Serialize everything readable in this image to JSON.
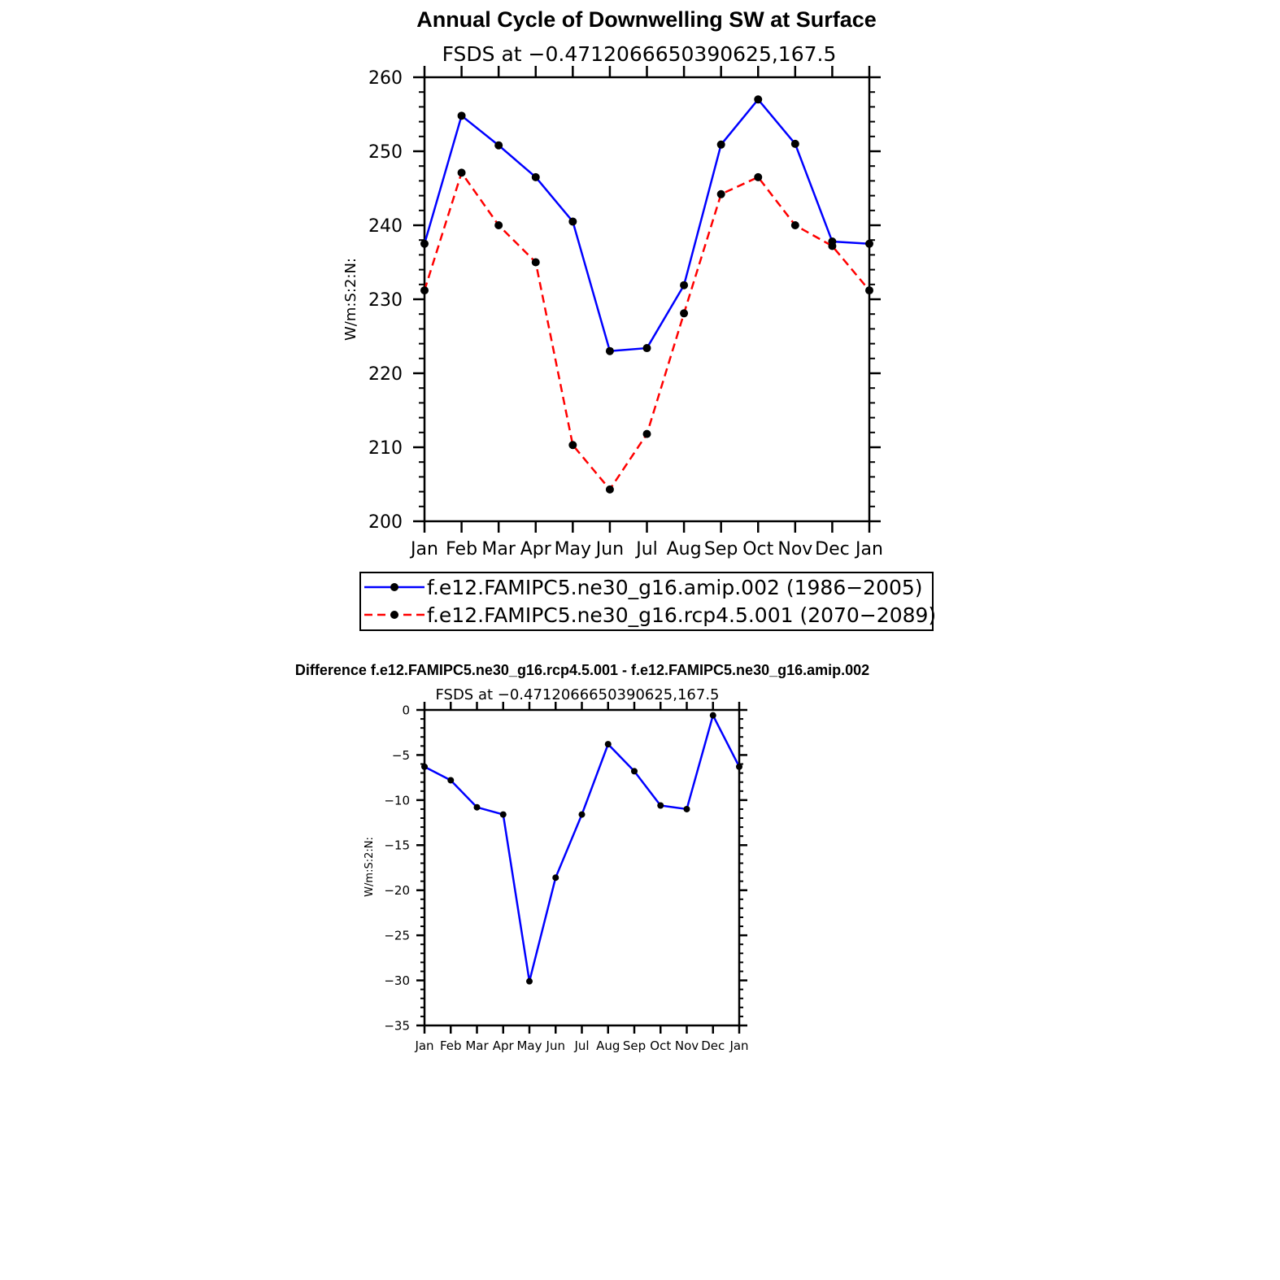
{
  "chart_data": [
    {
      "type": "line",
      "title": "Annual Cycle of Downwelling SW at Surface",
      "subtitle": "FSDS at −0.4712066650390625,167.5",
      "ylabel": "W/m:S:2:N:",
      "xlabel": "",
      "categories": [
        "Jan",
        "Feb",
        "Mar",
        "Apr",
        "May",
        "Jun",
        "Jul",
        "Aug",
        "Sep",
        "Oct",
        "Nov",
        "Dec",
        "Jan"
      ],
      "ylim": [
        200,
        260
      ],
      "yticks": [
        200,
        210,
        220,
        230,
        240,
        250,
        260
      ],
      "series": [
        {
          "name": "f.e12.FAMIPC5.ne30_g16.amip.002 (1986−2005)",
          "color": "#0000ff",
          "dash": "solid",
          "values": [
            237.5,
            254.8,
            250.8,
            246.5,
            240.5,
            223.0,
            223.4,
            231.9,
            250.9,
            257.0,
            251.0,
            237.8,
            237.5
          ]
        },
        {
          "name": "f.e12.FAMIPC5.ne30_g16.rcp4.5.001 (2070−2089)",
          "color": "#ff0000",
          "dash": "dashed",
          "values": [
            231.2,
            247.1,
            240.0,
            235.0,
            210.3,
            204.3,
            211.8,
            228.1,
            244.2,
            246.5,
            240.0,
            237.2,
            231.2
          ]
        }
      ],
      "legend_position": "bottom"
    },
    {
      "type": "line",
      "title": "Difference f.e12.FAMIPC5.ne30_g16.rcp4.5.001 - f.e12.FAMIPC5.ne30_g16.amip.002",
      "subtitle": "FSDS at −0.4712066650390625,167.5",
      "ylabel": "W/m:S:2:N:",
      "xlabel": "",
      "categories": [
        "Jan",
        "Feb",
        "Mar",
        "Apr",
        "May",
        "Jun",
        "Jul",
        "Aug",
        "Sep",
        "Oct",
        "Nov",
        "Dec",
        "Jan"
      ],
      "ylim": [
        -35,
        0
      ],
      "yticks": [
        0,
        -5,
        -10,
        -15,
        -20,
        -25,
        -30,
        -35
      ],
      "series": [
        {
          "name": "Difference",
          "color": "#0000ff",
          "dash": "solid",
          "values": [
            -6.3,
            -7.8,
            -10.8,
            -11.6,
            -30.1,
            -18.6,
            -11.6,
            -3.8,
            -6.8,
            -10.6,
            -11.0,
            -0.6,
            -6.3
          ]
        }
      ]
    }
  ]
}
